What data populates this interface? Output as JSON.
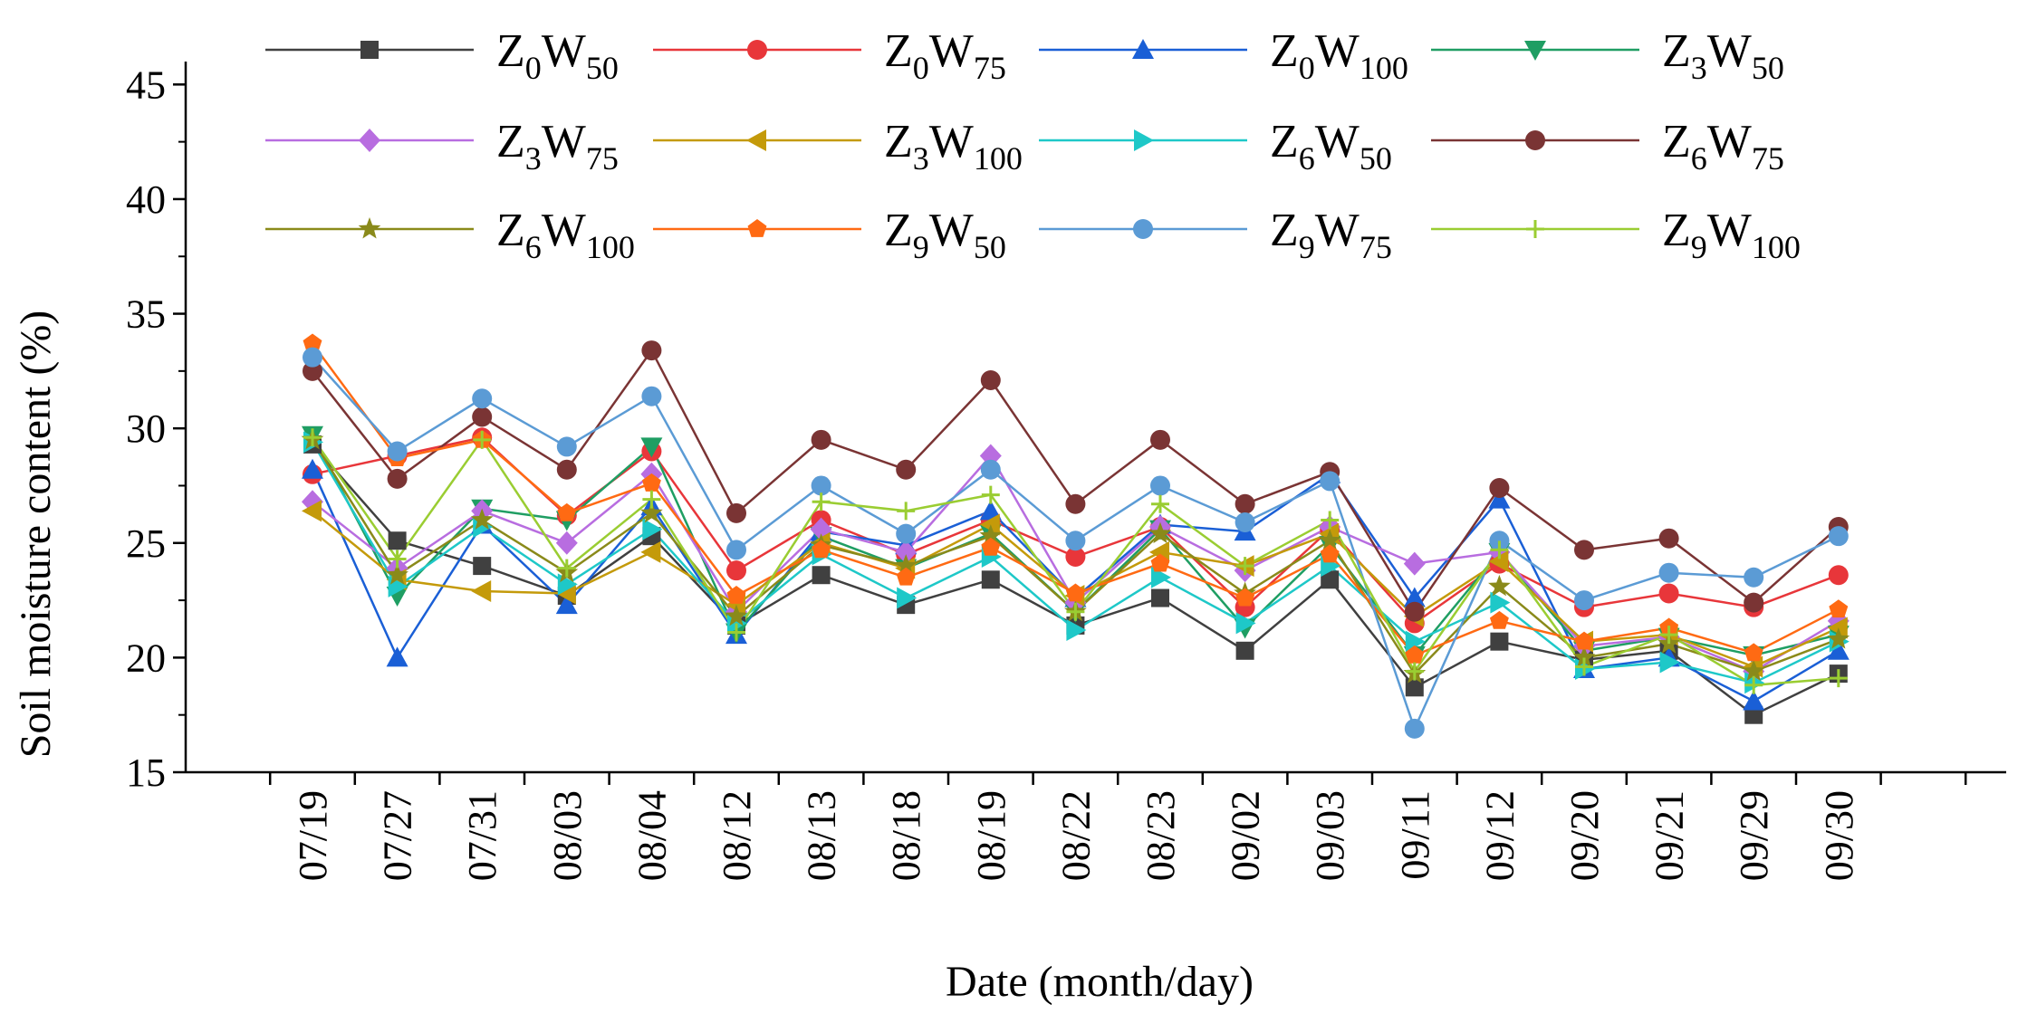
{
  "chart_data": {
    "type": "line",
    "title": "",
    "xlabel": "Date (month/day)",
    "ylabel": "Soil moisture content (%)",
    "ylim": [
      15,
      46
    ],
    "yticks": [
      15,
      20,
      25,
      30,
      35,
      40,
      45
    ],
    "grid": false,
    "legend_position": "top",
    "categories": [
      "07/19",
      "07/27",
      "07/31",
      "08/03",
      "08/04",
      "08/12",
      "08/13",
      "08/18",
      "08/19",
      "08/22",
      "08/23",
      "09/02",
      "09/03",
      "09/11",
      "09/12",
      "09/20",
      "09/21",
      "09/29",
      "09/30"
    ],
    "series": [
      {
        "name": "Z0W50",
        "label_main": "Z",
        "label_sub1": "0",
        "label_w": "W",
        "label_sub2": "50",
        "color": "#404040",
        "marker": "square",
        "values": [
          29.3,
          25.1,
          24.0,
          22.7,
          25.3,
          21.4,
          23.6,
          22.3,
          23.4,
          21.4,
          22.6,
          20.3,
          23.4,
          18.7,
          20.7,
          19.9,
          20.3,
          17.5,
          19.3
        ]
      },
      {
        "name": "Z0W75",
        "label_main": "Z",
        "label_sub1": "0",
        "label_w": "W",
        "label_sub2": "75",
        "color": "#e8363a",
        "marker": "circle",
        "values": [
          28.0,
          28.8,
          29.6,
          26.2,
          29.0,
          23.8,
          26.0,
          24.5,
          26.0,
          24.4,
          25.7,
          22.2,
          25.6,
          21.5,
          24.1,
          22.2,
          22.8,
          22.2,
          23.6
        ]
      },
      {
        "name": "Z0W100",
        "label_main": "Z",
        "label_sub1": "0",
        "label_w": "W",
        "label_sub2": "100",
        "color": "#1a5fd6",
        "marker": "triangle-up",
        "values": [
          28.2,
          20.0,
          25.8,
          22.3,
          26.6,
          21.0,
          25.5,
          24.9,
          26.4,
          22.6,
          25.8,
          25.5,
          28.0,
          22.6,
          26.9,
          19.5,
          20.0,
          18.1,
          20.3
        ]
      },
      {
        "name": "Z3W50",
        "label_main": "Z",
        "label_sub1": "3",
        "label_w": "W",
        "label_sub2": "50",
        "color": "#1f9e63",
        "marker": "triangle-down",
        "values": [
          29.7,
          22.7,
          26.5,
          26.0,
          29.2,
          21.1,
          25.3,
          23.9,
          25.4,
          22.0,
          25.6,
          21.3,
          24.9,
          20.1,
          24.6,
          20.3,
          20.9,
          20.1,
          21.0
        ]
      },
      {
        "name": "Z3W75",
        "label_main": "Z",
        "label_sub1": "3",
        "label_w": "W",
        "label_sub2": "75",
        "color": "#b86de0",
        "marker": "diamond",
        "values": [
          26.8,
          23.9,
          26.4,
          25.0,
          28.0,
          22.0,
          25.6,
          24.6,
          28.8,
          22.4,
          25.7,
          23.8,
          25.7,
          24.1,
          24.6,
          20.5,
          20.9,
          19.4,
          21.6
        ]
      },
      {
        "name": "Z3W100",
        "label_main": "Z",
        "label_sub1": "3",
        "label_w": "W",
        "label_sub2": "100",
        "color": "#c49a0a",
        "marker": "triangle-left",
        "values": [
          26.4,
          23.4,
          22.9,
          22.8,
          24.6,
          22.3,
          25.0,
          23.9,
          25.8,
          22.7,
          24.6,
          24.0,
          25.4,
          21.8,
          24.2,
          20.7,
          21.0,
          19.6,
          21.3
        ]
      },
      {
        "name": "Z6W50",
        "label_main": "Z",
        "label_sub1": "6",
        "label_w": "W",
        "label_sub2": "50",
        "color": "#1ec8c8",
        "marker": "triangle-right",
        "values": [
          29.4,
          23.1,
          25.7,
          23.2,
          25.6,
          21.5,
          24.5,
          22.6,
          24.4,
          21.2,
          23.5,
          21.5,
          24.0,
          20.7,
          22.4,
          19.5,
          19.8,
          18.9,
          20.7
        ]
      },
      {
        "name": "Z6W75",
        "label_main": "Z",
        "label_sub1": "6",
        "label_w": "W",
        "label_sub2": "75",
        "color": "#7a3434",
        "marker": "circle",
        "values": [
          32.5,
          27.8,
          30.5,
          28.2,
          33.4,
          26.3,
          29.5,
          28.2,
          32.1,
          26.7,
          29.5,
          26.7,
          28.1,
          22.0,
          27.4,
          24.7,
          25.2,
          22.4,
          25.7
        ]
      },
      {
        "name": "Z6W100",
        "label_main": "Z",
        "label_sub1": "6",
        "label_w": "W",
        "label_sub2": "100",
        "color": "#8a8a1a",
        "marker": "star",
        "values": [
          29.5,
          23.6,
          26.0,
          23.7,
          26.3,
          21.8,
          24.9,
          24.0,
          25.3,
          22.0,
          25.4,
          22.8,
          25.1,
          19.3,
          23.1,
          20.0,
          20.6,
          19.4,
          20.8
        ]
      },
      {
        "name": "Z9W50",
        "label_main": "Z",
        "label_sub1": "9",
        "label_w": "W",
        "label_sub2": "50",
        "color": "#ff6a13",
        "marker": "pentagon",
        "values": [
          33.7,
          28.7,
          29.5,
          26.3,
          27.6,
          22.7,
          24.7,
          23.5,
          24.8,
          22.8,
          24.1,
          22.6,
          24.5,
          20.1,
          21.6,
          20.7,
          21.3,
          20.2,
          22.1
        ]
      },
      {
        "name": "Z9W75",
        "label_main": "Z",
        "label_sub1": "9",
        "label_w": "W",
        "label_sub2": "75",
        "color": "#5b9bd5",
        "marker": "circle",
        "values": [
          33.1,
          29.0,
          31.3,
          29.2,
          31.4,
          24.7,
          27.5,
          25.4,
          28.2,
          25.1,
          27.5,
          25.9,
          27.7,
          16.9,
          25.1,
          22.5,
          23.7,
          23.5,
          25.3
        ]
      },
      {
        "name": "Z9W100",
        "label_main": "Z",
        "label_sub1": "9",
        "label_w": "W",
        "label_sub2": "100",
        "color": "#9acd32",
        "marker": "plus",
        "values": [
          29.6,
          24.3,
          29.5,
          23.9,
          26.9,
          21.1,
          26.8,
          26.4,
          27.1,
          22.0,
          26.7,
          24.0,
          26.0,
          19.4,
          24.7,
          19.6,
          21.0,
          18.8,
          19.1
        ]
      }
    ]
  }
}
